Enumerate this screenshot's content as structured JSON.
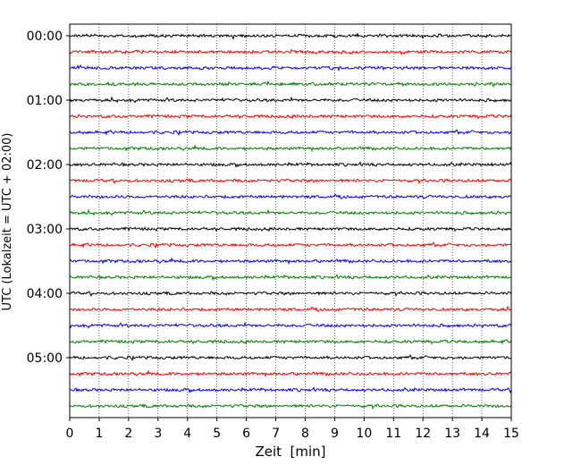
{
  "chart_data": {
    "type": "line",
    "title": "",
    "xlabel": "Zeit  [min]",
    "ylabel": "UTC (Lokalzeit = UTC + 02:00)",
    "xlim": [
      0,
      15
    ],
    "x_ticks": [
      "0",
      "1",
      "2",
      "3",
      "4",
      "5",
      "6",
      "7",
      "8",
      "9",
      "10",
      "11",
      "12",
      "13",
      "14",
      "15"
    ],
    "y_ticks": [
      "00:00",
      "01:00",
      "02:00",
      "03:00",
      "04:00",
      "05:00"
    ],
    "trace_interval_min": 15,
    "trace_count": 24,
    "trace_colors": [
      "#000000",
      "#ff0000",
      "#0000ff",
      "#008000"
    ],
    "grid": "vertical dotted lines at each minute"
  }
}
